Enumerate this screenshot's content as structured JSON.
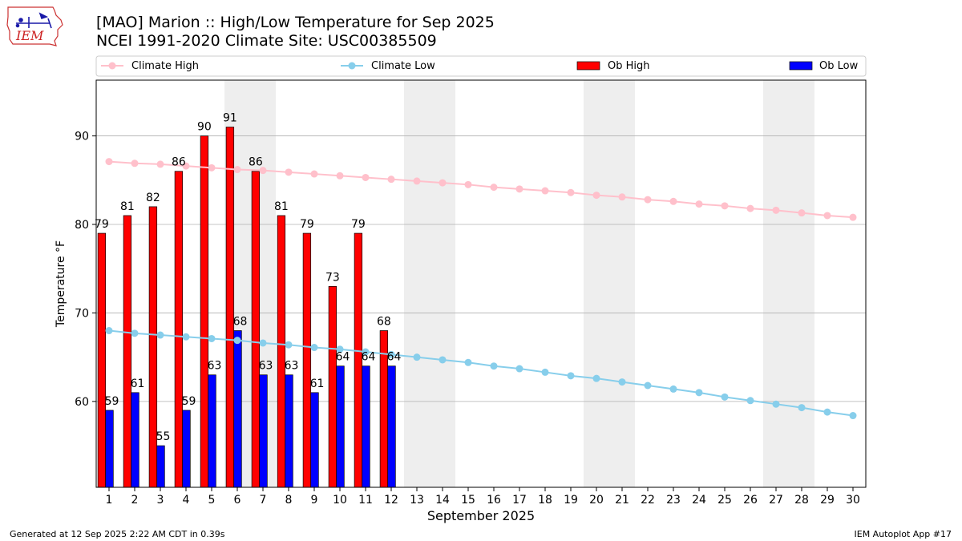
{
  "header": {
    "title_line1": "[MAO] Marion :: High/Low Temperature for Sep 2025",
    "title_line2": "NCEI 1991-2020 Climate Site: USC00385509"
  },
  "logo": {
    "text": "IEM"
  },
  "footer": {
    "generated": "Generated at 12 Sep 2025 2:22 AM CDT in 0.39s",
    "app": "IEM Autoplot App #17"
  },
  "colors": {
    "ob_high": "#ff0000",
    "ob_low": "#0000ff",
    "climate_high": "#ffc0cb",
    "climate_low": "#87ceeb",
    "weekend_shade": "#eeeeee",
    "grid": "#b0b0b0"
  },
  "chart_data": {
    "type": "bar",
    "xlabel": "September 2025",
    "ylabel": "Temperature °F",
    "ylim": [
      50.3,
      96.3
    ],
    "xlim": [
      0.5,
      30.5
    ],
    "yticks": [
      60,
      70,
      80,
      90
    ],
    "grid": true,
    "legend_position": "top",
    "shaded_days": [
      6,
      7,
      13,
      14,
      20,
      21,
      27,
      28
    ],
    "days": [
      1,
      2,
      3,
      4,
      5,
      6,
      7,
      8,
      9,
      10,
      11,
      12,
      13,
      14,
      15,
      16,
      17,
      18,
      19,
      20,
      21,
      22,
      23,
      24,
      25,
      26,
      27,
      28,
      29,
      30
    ],
    "series": [
      {
        "name": "Climate High",
        "kind": "line",
        "values": [
          87.1,
          86.9,
          86.8,
          86.6,
          86.4,
          86.2,
          86.1,
          85.9,
          85.7,
          85.5,
          85.3,
          85.1,
          84.9,
          84.7,
          84.5,
          84.2,
          84.0,
          83.8,
          83.6,
          83.3,
          83.1,
          82.8,
          82.6,
          82.3,
          82.1,
          81.8,
          81.6,
          81.3,
          81.0,
          80.8
        ]
      },
      {
        "name": "Climate Low",
        "kind": "line",
        "values": [
          68.0,
          67.7,
          67.5,
          67.3,
          67.1,
          66.9,
          66.6,
          66.4,
          66.1,
          65.9,
          65.6,
          65.3,
          65.0,
          64.7,
          64.4,
          64.0,
          63.7,
          63.3,
          62.9,
          62.6,
          62.2,
          61.8,
          61.4,
          61.0,
          60.5,
          60.1,
          59.7,
          59.3,
          58.8,
          58.4
        ]
      },
      {
        "name": "Ob High",
        "kind": "bar",
        "values": [
          79,
          81,
          82,
          86,
          90,
          91,
          86,
          81,
          79,
          73,
          79,
          68
        ]
      },
      {
        "name": "Ob Low",
        "kind": "bar",
        "values": [
          59,
          61,
          55,
          59,
          63,
          68,
          63,
          63,
          61,
          64,
          64,
          64
        ]
      }
    ],
    "bar_labels_high": [
      "79",
      "81",
      "82",
      "86",
      "90",
      "91",
      "86",
      "81",
      "79",
      "73",
      "79",
      "68"
    ],
    "bar_labels_low": [
      "59",
      "61",
      "55",
      "59",
      "63",
      "68",
      "63",
      "63",
      "61",
      "64",
      "64",
      "64"
    ]
  }
}
